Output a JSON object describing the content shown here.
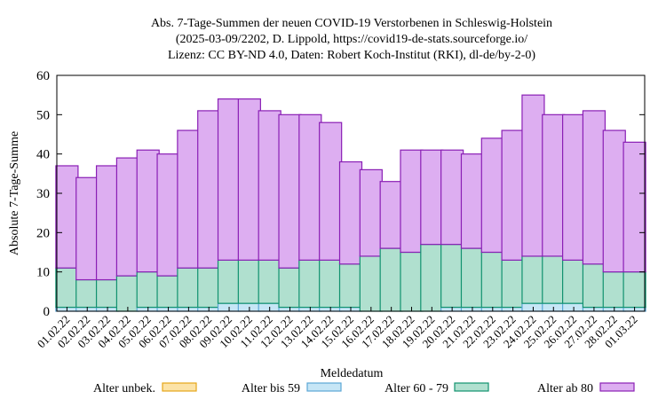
{
  "chart_data": {
    "type": "bar",
    "stacked": true,
    "title_lines": [
      "Abs. 7-Tage-Summen der neuen COVID-19 Verstorbenen in Schleswig-Holstein",
      "(2025-03-09/2202, D. Lippold, https://covid19-de-stats.sourceforge.io/",
      "Lizenz: CC BY-ND 4.0, Daten: Robert Koch-Institut (RKI), dl-de/by-2-0)"
    ],
    "xlabel": "Meldedatum",
    "ylabel": "Absolute 7-Tage-Summe",
    "ylim": [
      0,
      60
    ],
    "yticks": [
      0,
      10,
      20,
      30,
      40,
      50,
      60
    ],
    "grid": false,
    "legend_position": "bottom",
    "categories": [
      "01.02.22",
      "02.02.22",
      "03.02.22",
      "04.02.22",
      "05.02.22",
      "06.02.22",
      "07.02.22",
      "08.02.22",
      "09.02.22",
      "10.02.22",
      "11.02.22",
      "12.02.22",
      "13.02.22",
      "14.02.22",
      "15.02.22",
      "16.02.22",
      "17.02.22",
      "18.02.22",
      "19.02.22",
      "20.02.22",
      "21.02.22",
      "22.02.22",
      "23.02.22",
      "24.02.22",
      "25.02.22",
      "26.02.22",
      "27.02.22",
      "28.02.22",
      "01.03.22"
    ],
    "series": [
      {
        "name": "Alter unbek.",
        "fill": "#fce3a7",
        "stroke": "#e5a619",
        "values": [
          0,
          0,
          0,
          0,
          0,
          0,
          0,
          0,
          0,
          0,
          0,
          0,
          0,
          0,
          0,
          0,
          0,
          0,
          0,
          0,
          0,
          0,
          0,
          0,
          0,
          0,
          0,
          0,
          0
        ]
      },
      {
        "name": "Alter bis 59",
        "fill": "#c6e6f6",
        "stroke": "#5ba7d6",
        "values": [
          1,
          1,
          1,
          0,
          1,
          1,
          1,
          1,
          2,
          2,
          2,
          1,
          1,
          1,
          1,
          0,
          0,
          0,
          0,
          1,
          1,
          1,
          1,
          2,
          2,
          2,
          1,
          1,
          1
        ]
      },
      {
        "name": "Alter 60 - 79",
        "fill": "#b0e0cf",
        "stroke": "#11926f",
        "values": [
          10,
          7,
          7,
          9,
          9,
          8,
          10,
          10,
          11,
          11,
          11,
          10,
          12,
          12,
          11,
          14,
          16,
          15,
          17,
          16,
          15,
          14,
          12,
          12,
          12,
          11,
          11,
          9,
          9
        ]
      },
      {
        "name": "Alter ab 80",
        "fill": "#ddaef1",
        "stroke": "#8a1fb5",
        "values": [
          26,
          26,
          29,
          30,
          31,
          31,
          35,
          40,
          41,
          41,
          38,
          39,
          37,
          35,
          26,
          22,
          17,
          26,
          24,
          24,
          24,
          29,
          33,
          41,
          36,
          37,
          39,
          36,
          33
        ]
      }
    ]
  }
}
